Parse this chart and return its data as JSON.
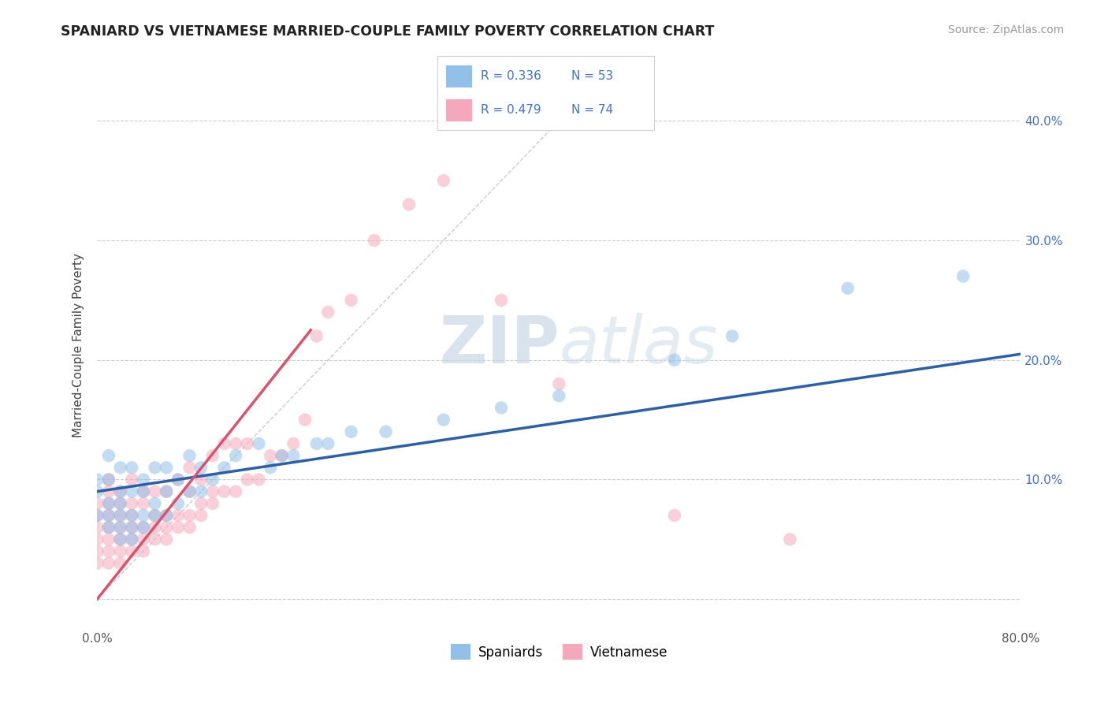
{
  "title": "SPANIARD VS VIETNAMESE MARRIED-COUPLE FAMILY POVERTY CORRELATION CHART",
  "source": "Source: ZipAtlas.com",
  "ylabel": "Married-Couple Family Poverty",
  "xlim": [
    0.0,
    0.8
  ],
  "ylim": [
    -0.025,
    0.45
  ],
  "xticks": [
    0.0,
    0.1,
    0.2,
    0.3,
    0.4,
    0.5,
    0.6,
    0.7,
    0.8
  ],
  "xticklabels": [
    "0.0%",
    "",
    "",
    "",
    "",
    "",
    "",
    "",
    "80.0%"
  ],
  "yticks": [
    0.0,
    0.1,
    0.2,
    0.3,
    0.4
  ],
  "yticklabels_right": [
    "",
    "10.0%",
    "20.0%",
    "30.0%",
    "40.0%"
  ],
  "spaniard_color": "#92c0e8",
  "vietnamese_color": "#f5a8bc",
  "spaniard_line_color": "#2e5fa3",
  "vietnamese_line_color": "#d9536a",
  "diagonal_color": "#d0d0d0",
  "watermark_zip": "ZIP",
  "watermark_atlas": "atlas",
  "legend_entries": [
    "Spaniards",
    "Vietnamese"
  ],
  "spaniard_R": "0.336",
  "spaniard_N": "53",
  "vietnamese_R": "0.479",
  "vietnamese_N": "74",
  "blue_line_x0": 0.0,
  "blue_line_y0": 0.09,
  "blue_line_x1": 0.8,
  "blue_line_y1": 0.205,
  "pink_line_x0": 0.0,
  "pink_line_y0": 0.0,
  "pink_line_x1": 0.185,
  "pink_line_y1": 0.225,
  "spaniard_x": [
    0.0,
    0.0,
    0.0,
    0.01,
    0.01,
    0.01,
    0.01,
    0.01,
    0.02,
    0.02,
    0.02,
    0.02,
    0.02,
    0.02,
    0.03,
    0.03,
    0.03,
    0.03,
    0.03,
    0.04,
    0.04,
    0.04,
    0.04,
    0.05,
    0.05,
    0.05,
    0.06,
    0.06,
    0.06,
    0.07,
    0.07,
    0.08,
    0.08,
    0.09,
    0.09,
    0.1,
    0.11,
    0.12,
    0.14,
    0.15,
    0.16,
    0.17,
    0.19,
    0.2,
    0.22,
    0.25,
    0.3,
    0.35,
    0.4,
    0.5,
    0.55,
    0.65,
    0.75
  ],
  "spaniard_y": [
    0.07,
    0.09,
    0.1,
    0.06,
    0.07,
    0.08,
    0.1,
    0.12,
    0.05,
    0.06,
    0.07,
    0.08,
    0.09,
    0.11,
    0.05,
    0.06,
    0.07,
    0.09,
    0.11,
    0.06,
    0.07,
    0.09,
    0.1,
    0.07,
    0.08,
    0.11,
    0.07,
    0.09,
    0.11,
    0.08,
    0.1,
    0.09,
    0.12,
    0.09,
    0.11,
    0.1,
    0.11,
    0.12,
    0.13,
    0.11,
    0.12,
    0.12,
    0.13,
    0.13,
    0.14,
    0.14,
    0.15,
    0.16,
    0.17,
    0.2,
    0.22,
    0.26,
    0.27
  ],
  "vietnamese_x": [
    0.0,
    0.0,
    0.0,
    0.0,
    0.0,
    0.0,
    0.01,
    0.01,
    0.01,
    0.01,
    0.01,
    0.01,
    0.01,
    0.01,
    0.02,
    0.02,
    0.02,
    0.02,
    0.02,
    0.02,
    0.02,
    0.03,
    0.03,
    0.03,
    0.03,
    0.03,
    0.03,
    0.04,
    0.04,
    0.04,
    0.04,
    0.04,
    0.05,
    0.05,
    0.05,
    0.05,
    0.06,
    0.06,
    0.06,
    0.06,
    0.07,
    0.07,
    0.07,
    0.08,
    0.08,
    0.08,
    0.08,
    0.09,
    0.09,
    0.09,
    0.1,
    0.1,
    0.1,
    0.11,
    0.11,
    0.12,
    0.12,
    0.13,
    0.13,
    0.14,
    0.15,
    0.16,
    0.17,
    0.18,
    0.19,
    0.2,
    0.22,
    0.24,
    0.27,
    0.3,
    0.35,
    0.4,
    0.5,
    0.6
  ],
  "vietnamese_y": [
    0.03,
    0.04,
    0.05,
    0.06,
    0.07,
    0.08,
    0.03,
    0.04,
    0.05,
    0.06,
    0.07,
    0.08,
    0.09,
    0.1,
    0.03,
    0.04,
    0.05,
    0.06,
    0.07,
    0.08,
    0.09,
    0.04,
    0.05,
    0.06,
    0.07,
    0.08,
    0.1,
    0.04,
    0.05,
    0.06,
    0.08,
    0.09,
    0.05,
    0.06,
    0.07,
    0.09,
    0.05,
    0.06,
    0.07,
    0.09,
    0.06,
    0.07,
    0.1,
    0.06,
    0.07,
    0.09,
    0.11,
    0.07,
    0.08,
    0.1,
    0.08,
    0.09,
    0.12,
    0.09,
    0.13,
    0.09,
    0.13,
    0.1,
    0.13,
    0.1,
    0.12,
    0.12,
    0.13,
    0.15,
    0.22,
    0.24,
    0.25,
    0.3,
    0.33,
    0.35,
    0.25,
    0.18,
    0.07,
    0.05
  ]
}
